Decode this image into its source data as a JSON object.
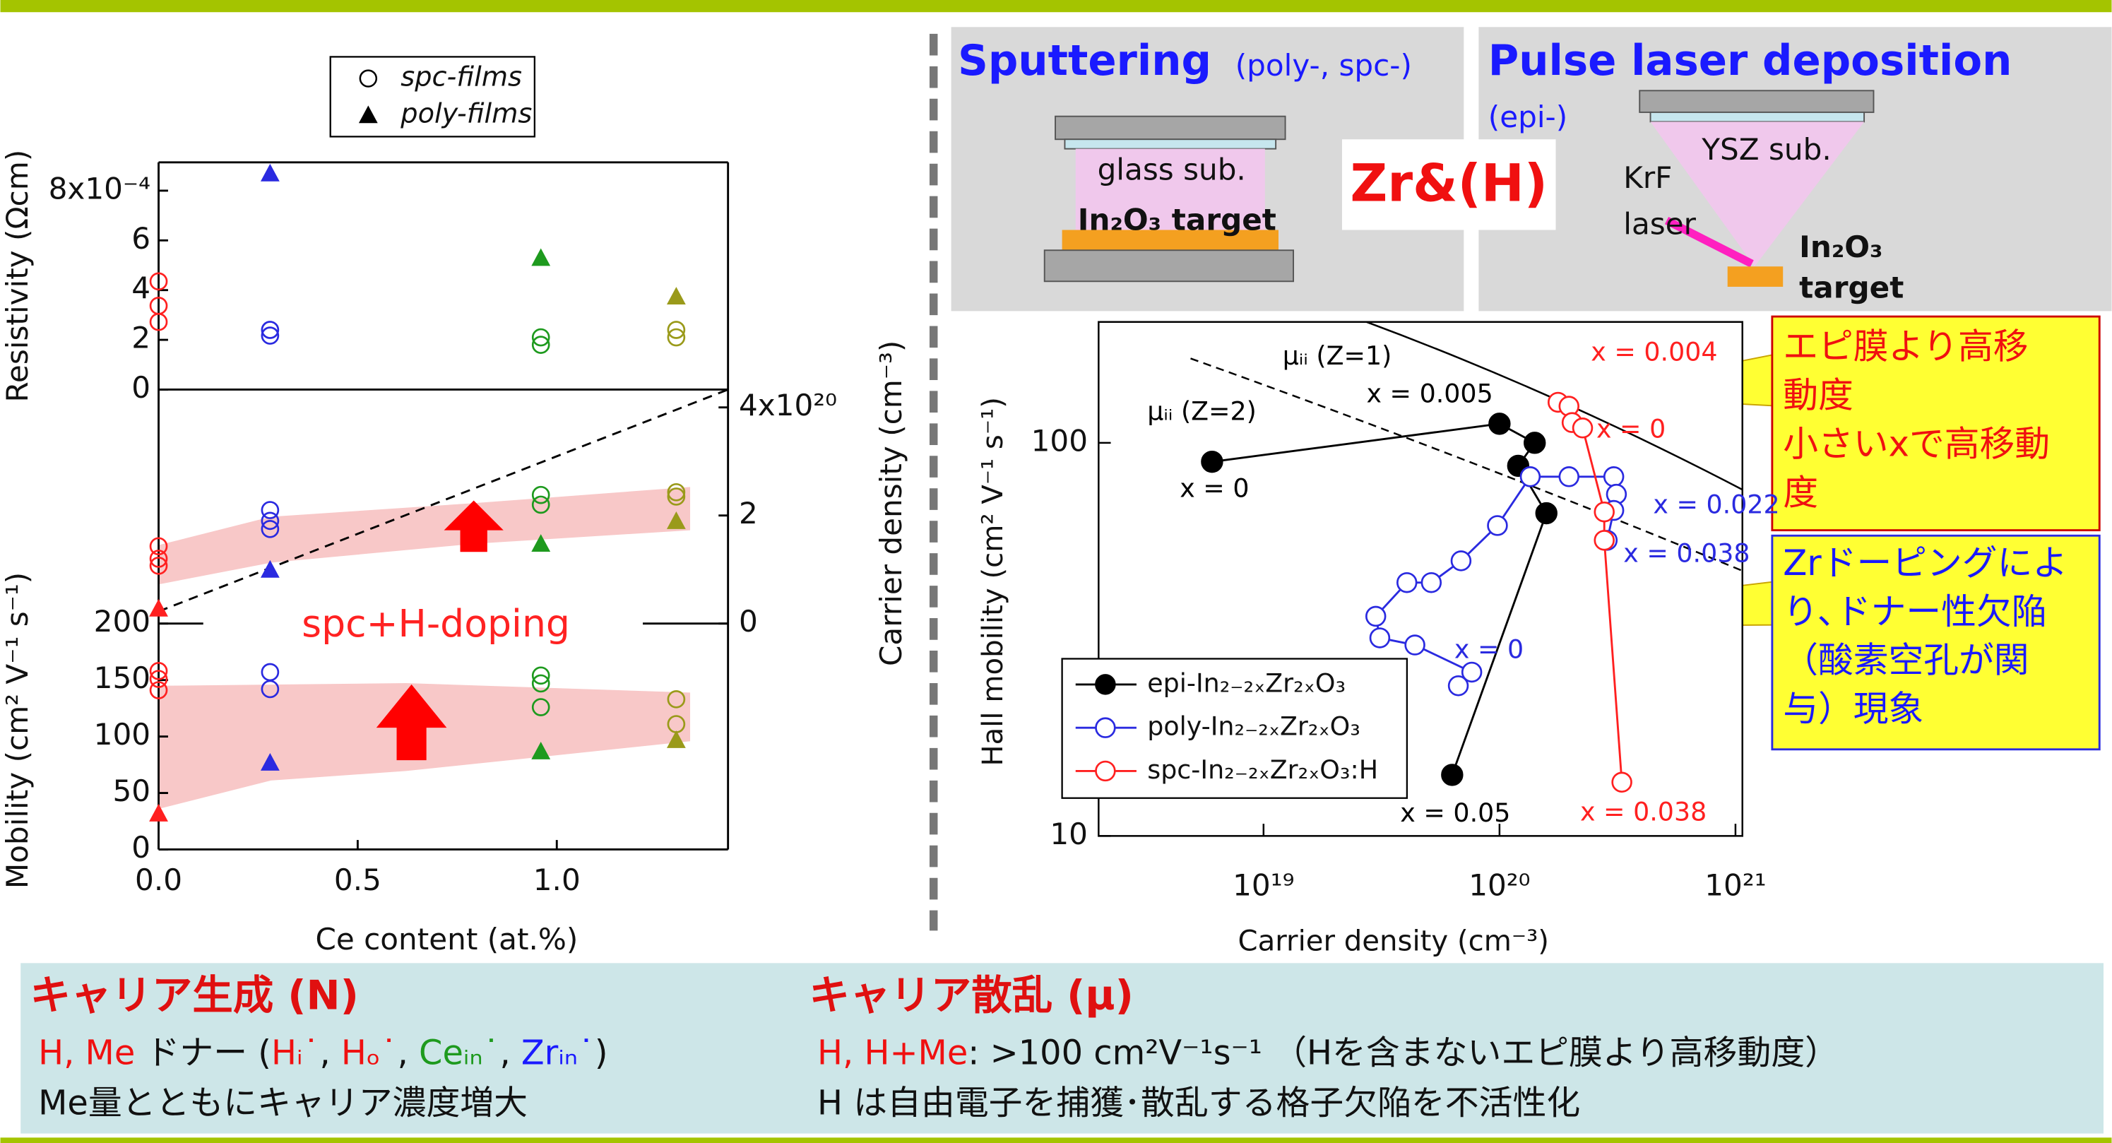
{
  "chart_data": [
    {
      "type": "scatter",
      "ylabel": "Resistivity (Ωcm)",
      "xlim": [
        0,
        1.43
      ],
      "ylim": [
        0,
        0.000914
      ],
      "yticks": [
        0,
        {
          "value": 0.0002,
          "label": "2"
        },
        {
          "value": 0.0004,
          "label": "4"
        },
        {
          "value": 0.0006,
          "label": "6"
        },
        {
          "value": 0.0008,
          "label": "8x10⁻⁴"
        }
      ],
      "legend": "top-center",
      "series": [
        {
          "name": "spc-films",
          "marker": "circle",
          "x": [
            0,
            0,
            0,
            0.28,
            0.28,
            0.96,
            0.96,
            1.3,
            1.3
          ],
          "values": [
            0.000435,
            0.000337,
            0.000272,
            0.00024,
            0.000217,
            0.00021,
            0.00018,
            0.00024,
            0.00021
          ],
          "colors": [
            "#ff2020",
            "#ff2020",
            "#ff2020",
            "#2a2ae0",
            "#2a2ae0",
            "#1e9a1e",
            "#1e9a1e",
            "#9a9a1a",
            "#9a9a1a"
          ]
        },
        {
          "name": "poly-films",
          "marker": "triangle",
          "x": [
            0.28,
            0.96,
            1.3
          ],
          "values": [
            0.00087,
            0.00053,
            0.000375
          ],
          "colors": [
            "#2a2ae0",
            "#1e9a1e",
            "#9a9a1a"
          ]
        }
      ]
    },
    {
      "type": "scatter",
      "ylabel": "Carrier density (cm⁻³)",
      "y_axis": "right",
      "xlim": [
        0,
        1.43
      ],
      "ylim": [
        0,
        4.33e+20
      ],
      "yticks": [
        0,
        {
          "value": 2e+20,
          "label": "2"
        },
        {
          "value": 4e+20,
          "label": "4x10²⁰"
        }
      ],
      "series": [
        {
          "marker": "circle",
          "x": [
            0,
            0,
            0,
            0.28,
            0.28,
            0.28,
            0.96,
            0.96,
            1.3,
            1.3
          ],
          "values": [
            1.43e+20,
            1.2e+20,
            1.07e+20,
            2.1e+20,
            1.9e+20,
            1.75e+20,
            2.38e+20,
            2.2e+20,
            2.43e+20,
            2.35e+20
          ],
          "colors": [
            "#ff2020",
            "#ff2020",
            "#ff2020",
            "#2a2ae0",
            "#2a2ae0",
            "#2a2ae0",
            "#1e9a1e",
            "#1e9a1e",
            "#9a9a1a",
            "#9a9a1a"
          ]
        },
        {
          "marker": "triangle",
          "x": [
            0,
            0.28,
            0.96,
            1.3
          ],
          "values": [
            2.8e+19,
            1e+20,
            1.48e+20,
            1.9e+20
          ],
          "colors": [
            "#ff2020",
            "#2a2ae0",
            "#1e9a1e",
            "#9a9a1a"
          ]
        }
      ]
    },
    {
      "type": "scatter",
      "ylabel": "Mobility (cm² V⁻¹ s⁻¹)",
      "xlabel": "Ce content (at.%)",
      "xlim": [
        0,
        1.43
      ],
      "ylim": [
        0,
        200
      ],
      "xticks": [
        {
          "value": 0,
          "label": "0.0"
        },
        0.5,
        {
          "value": 1,
          "label": "1.0"
        }
      ],
      "yticks": [
        0,
        50,
        100,
        150,
        200
      ],
      "annotation": "spc+H-doping",
      "series": [
        {
          "marker": "circle",
          "x": [
            0,
            0,
            0,
            0.28,
            0.28,
            0.96,
            0.96,
            0.96,
            1.3,
            1.3
          ],
          "values": [
            158,
            151,
            141,
            157,
            142,
            154,
            147,
            126,
            133,
            111
          ],
          "colors": [
            "#ff2020",
            "#ff2020",
            "#ff2020",
            "#2a2ae0",
            "#2a2ae0",
            "#1e9a1e",
            "#1e9a1e",
            "#1e9a1e",
            "#9a9a1a",
            "#9a9a1a"
          ]
        },
        {
          "marker": "triangle",
          "x": [
            0,
            0.28,
            0.96,
            1.3
          ],
          "values": [
            32,
            77,
            87,
            97
          ],
          "colors": [
            "#ff2020",
            "#2a2ae0",
            "#1e9a1e",
            "#9a9a1a"
          ]
        }
      ]
    },
    {
      "type": "line",
      "log_x": true,
      "log_y": true,
      "xlabel": "Carrier density (cm⁻³)",
      "ylabel": "Hall mobility (cm² V⁻¹ s⁻¹)",
      "xlim": [
        2e+18,
        1.07e+21
      ],
      "ylim": [
        10,
        203
      ],
      "xticks": [
        {
          "value": 1e+19,
          "label": "10¹⁹"
        },
        {
          "value": 1e+20,
          "label": "10²⁰"
        },
        {
          "value": 1e+21,
          "label": "10²¹"
        }
      ],
      "yticks": [
        10,
        100
      ],
      "legend": "lower-left",
      "series": [
        {
          "name": "epi-In₂₋₂ₓZr₂ₓO₃",
          "color": "#000000",
          "marker": "filled",
          "x": [
            6.05e+18,
            1e+20,
            1.41e+20,
            1.2e+20,
            1.58e+20,
            6.3e+19
          ],
          "values": [
            89.5,
            111.8,
            100,
            87.4,
            66.2,
            14.3
          ]
        },
        {
          "name": "poly-In₂₋₂ₓZr₂ₓO₃",
          "color": "#2a2ae0",
          "marker": "open",
          "x": [
            6.69e+19,
            7.63e+19,
            4.38e+19,
            3.11e+19,
            2.99e+19,
            4.05e+19,
            5.14e+19,
            6.87e+19,
            9.8e+19,
            1.35e+20,
            1.97e+20,
            3.05e+20,
            3.13e+20,
            3.05e+20,
            2.86e+20
          ],
          "values": [
            24.1,
            26.1,
            30.6,
            31.9,
            36.2,
            44.1,
            44.1,
            50.1,
            61.6,
            82.0,
            82.0,
            82.0,
            74.0,
            67.3,
            56.5
          ]
        },
        {
          "name": "spc-In₂₋₂ₓZr₂ₓO₃:H",
          "color": "#ff2020",
          "marker": "open",
          "x": [
            1.77e+20,
            1.97e+20,
            2.03e+20,
            2.25e+20,
            2.78e+20,
            2.78e+20,
            3.3e+20
          ],
          "values": [
            126.8,
            123.9,
            112.6,
            109.1,
            66.7,
            56.5,
            13.7
          ]
        }
      ],
      "annotations": [
        {
          "text": "μᵢᵢ (Z=1)",
          "color": "#000000"
        },
        {
          "text": "μᵢᵢ (Z=2)",
          "color": "#000000"
        },
        {
          "text": "x = 0.005",
          "color": "#000000"
        },
        {
          "text": "x = 0",
          "color": "#000000"
        },
        {
          "text": "x = 0.004",
          "color": "#ff2020"
        },
        {
          "text": "x = 0",
          "color": "#ff2020"
        },
        {
          "text": "x = 0.022",
          "color": "#2a2ae0"
        },
        {
          "text": "x = 0.038",
          "color": "#2a2ae0"
        },
        {
          "text": "x = 0",
          "color": "#2a2ae0"
        },
        {
          "text": "x = 0.05",
          "color": "#000000"
        },
        {
          "text": "x = 0.038",
          "color": "#ff2020"
        }
      ]
    }
  ],
  "diagram": {
    "sputtering": {
      "title": "Sputtering",
      "note": "(poly-, spc-)",
      "substrate": "glass sub.",
      "target": "In₂O₃ target"
    },
    "dopant": "Zr&(H)",
    "pld": {
      "title": "Pulse laser deposition",
      "note": "(epi-)",
      "substrate": "YSZ sub.",
      "laser": [
        "KrF",
        "laser"
      ],
      "target": [
        "In₂O₃",
        "target"
      ]
    }
  },
  "callouts": [
    {
      "lines": [
        "エピ膜より高移",
        "動度",
        "小さいxで高移動",
        "度"
      ]
    },
    {
      "lines": [
        "Zrドーピングによ",
        "り､ドナー性欠陥",
        "（酸素空孔が関",
        "与）現象"
      ]
    }
  ],
  "summary": {
    "generation": {
      "heading": "キャリア生成 (N)",
      "lines": [
        [
          "H, Me",
          " ドナー (",
          "Hᵢ˙",
          ", ",
          "Hₒ˙",
          ", ",
          "Ceᵢₙ˙",
          ", ",
          "Zrᵢₙ˙",
          ")"
        ],
        [
          "Me量とともにキャリア濃度増大"
        ]
      ]
    },
    "scattering": {
      "heading": "キャリア散乱 (μ)",
      "lines": [
        [
          "H, H+Me",
          ": >100 cm²V⁻¹s⁻¹ （Hを含まないエピ膜より高移動度）"
        ],
        [
          "H は自由電子を捕獲･散乱する格子欠陥を不活性化"
        ]
      ]
    }
  }
}
